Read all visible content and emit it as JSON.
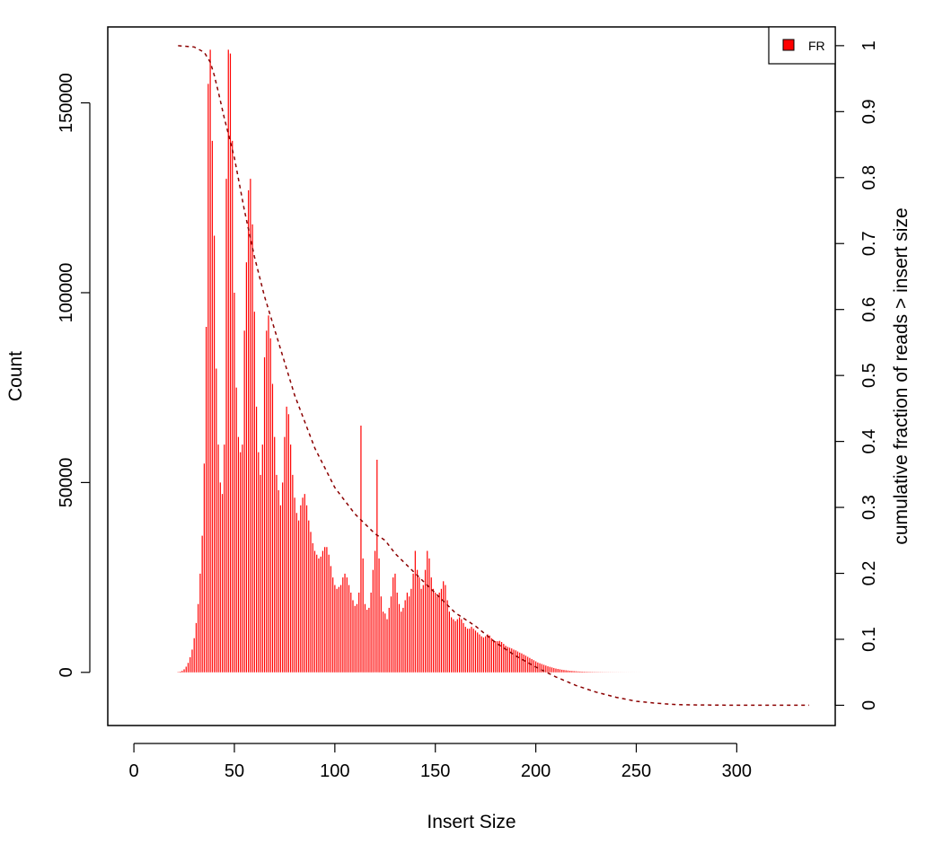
{
  "chart_data": {
    "type": "bar",
    "xlabel": "Insert Size",
    "ylabel": "Count",
    "y2label": "cumulative fraction of reads > insert size",
    "xlim": [
      -13,
      349
    ],
    "ylim": [
      -14000,
      170000
    ],
    "y2lim": [
      -0.0307,
      1.0284
    ],
    "x_ticks": [
      0,
      50,
      100,
      150,
      200,
      250,
      300
    ],
    "y_ticks": [
      0,
      50000,
      100000,
      150000
    ],
    "y2_ticks": [
      0,
      0.1,
      0.2,
      0.3,
      0.4,
      0.5,
      0.6,
      0.7,
      0.8,
      0.9,
      1
    ],
    "grid": false,
    "legend": {
      "position": "top-right"
    },
    "series": [
      {
        "name": "FR",
        "color": "#ff0000",
        "style": "bars",
        "x_start": 22,
        "x_step": 1,
        "values": [
          100,
          200,
          400,
          800,
          1500,
          2500,
          4000,
          6000,
          9000,
          13000,
          18000,
          26000,
          36000,
          55000,
          91000,
          155000,
          164000,
          140000,
          115000,
          80000,
          60000,
          50000,
          47000,
          60000,
          130000,
          164000,
          163000,
          140000,
          100000,
          75000,
          62000,
          58000,
          60000,
          90000,
          108000,
          127000,
          130000,
          118000,
          95000,
          70000,
          58000,
          52000,
          60000,
          83000,
          90000,
          94000,
          88000,
          76000,
          62000,
          52000,
          48000,
          44000,
          50000,
          62000,
          70000,
          68000,
          60000,
          52000,
          46000,
          42000,
          40000,
          44000,
          46000,
          47000,
          44000,
          40000,
          37000,
          34000,
          32000,
          31000,
          30000,
          30500,
          32000,
          33000,
          33000,
          31000,
          28000,
          25000,
          23000,
          22000,
          22500,
          23000,
          25000,
          26000,
          25000,
          23000,
          21000,
          19000,
          17500,
          18000,
          21000,
          65000,
          30000,
          18000,
          16500,
          17000,
          21000,
          27000,
          32000,
          56000,
          30000,
          20000,
          16000,
          15500,
          14000,
          17000,
          20000,
          25000,
          26000,
          21000,
          18000,
          16000,
          17000,
          19000,
          21000,
          20000,
          22000,
          26000,
          32000,
          27000,
          25000,
          22000,
          23000,
          27000,
          32000,
          30000,
          25000,
          22000,
          21000,
          20000,
          21000,
          22000,
          24000,
          23000,
          19000,
          16000,
          14500,
          14000,
          13500,
          14000,
          14500,
          14000,
          13000,
          12000,
          11500,
          11500,
          12000,
          11500,
          11000,
          10500,
          10000,
          9500,
          9200,
          9500,
          10000,
          9700,
          9000,
          8500,
          8200,
          8200,
          8300,
          8000,
          7500,
          7000,
          6700,
          6500,
          6300,
          6000,
          5800,
          5500,
          5200,
          5000,
          4700,
          4400,
          4100,
          3800,
          3500,
          3200,
          2900,
          2600,
          2400,
          2200,
          2000,
          1800,
          1600,
          1450,
          1300,
          1150,
          1000,
          900,
          800,
          700,
          620,
          550,
          480,
          420,
          370,
          330,
          290,
          250,
          220,
          195,
          170,
          150,
          130,
          115,
          100,
          90,
          80,
          70,
          62,
          55,
          48,
          42,
          37,
          33,
          29,
          25,
          22,
          19,
          16,
          14,
          12,
          10,
          9,
          8,
          7,
          6,
          5,
          4,
          4,
          3,
          3,
          2,
          2,
          2,
          1,
          1,
          1,
          1,
          1,
          1,
          1,
          1,
          1,
          1,
          1,
          1,
          1,
          1,
          1,
          1,
          1,
          1,
          1,
          1,
          1,
          1,
          1,
          1,
          1,
          1,
          1,
          1,
          1,
          1,
          1,
          1,
          1,
          1,
          1,
          1,
          1,
          1,
          1,
          1,
          1,
          1,
          1,
          1,
          1,
          1,
          1,
          1,
          1,
          1,
          1,
          1,
          1,
          1,
          1,
          1,
          1,
          1,
          1,
          1,
          1,
          1,
          1,
          1,
          1,
          1,
          1,
          1,
          1,
          1,
          1,
          1,
          1,
          1,
          1,
          1,
          1,
          1,
          1,
          1,
          1,
          1,
          1,
          1,
          1,
          1,
          1,
          1,
          1,
          1,
          1,
          1,
          1,
          1,
          1,
          1,
          1,
          1,
          1,
          1,
          1,
          1,
          1,
          1,
          1,
          1,
          1,
          1,
          1,
          1,
          1,
          1,
          1,
          1,
          1,
          1,
          1,
          1,
          1,
          1,
          1,
          1,
          1,
          1,
          1,
          1,
          1,
          1,
          1,
          1,
          1,
          1,
          1,
          1,
          1,
          1,
          1,
          1,
          1,
          1,
          1,
          1,
          1,
          1,
          1,
          1,
          1,
          1,
          1,
          1,
          1,
          1,
          1,
          1,
          1,
          1,
          1,
          1,
          1,
          1,
          1,
          1,
          1,
          1,
          1,
          1
        ]
      },
      {
        "name": "",
        "color": "#8b0000",
        "style": "dashed-line",
        "axis": "right",
        "x": [
          22,
          30,
          35,
          38,
          40,
          42,
          45,
          50,
          55,
          60,
          65,
          70,
          75,
          80,
          85,
          90,
          95,
          100,
          110,
          120,
          125,
          130,
          140,
          150,
          160,
          170,
          180,
          190,
          200,
          210,
          220,
          230,
          240,
          250,
          260,
          270,
          280,
          300,
          336
        ],
        "y": [
          1.0,
          0.998,
          0.99,
          0.975,
          0.955,
          0.93,
          0.89,
          0.83,
          0.75,
          0.68,
          0.62,
          0.57,
          0.52,
          0.47,
          0.43,
          0.39,
          0.36,
          0.33,
          0.29,
          0.26,
          0.25,
          0.23,
          0.2,
          0.17,
          0.14,
          0.12,
          0.095,
          0.075,
          0.058,
          0.043,
          0.03,
          0.02,
          0.012,
          0.006,
          0.003,
          0.001,
          0.0005,
          0.0001,
          0.0
        ]
      }
    ]
  }
}
